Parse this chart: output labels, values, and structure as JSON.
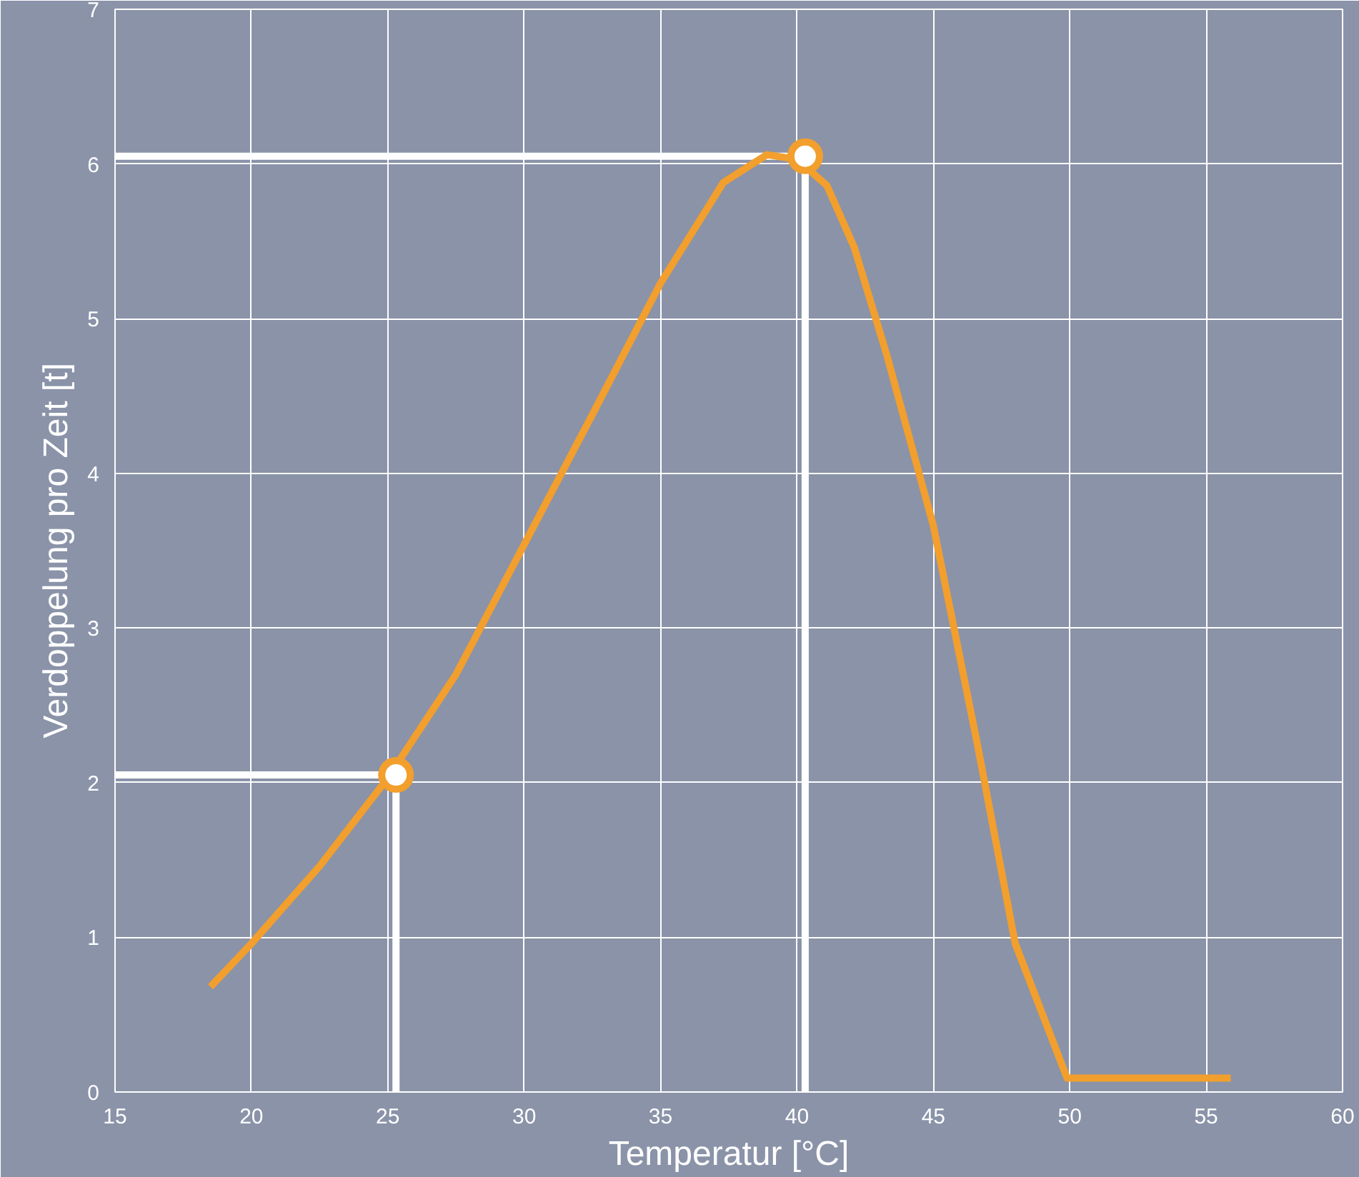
{
  "chart_data": {
    "type": "line",
    "xlabel": "Temperatur [°C]",
    "ylabel": "Verdoppelung pro Zeit [t]",
    "xlim": [
      15,
      60
    ],
    "ylim": [
      0,
      7
    ],
    "xticks": [
      15,
      20,
      25,
      30,
      35,
      40,
      45,
      50,
      55,
      60
    ],
    "yticks": [
      0,
      1,
      2,
      3,
      4,
      5,
      6,
      7
    ],
    "grid": true,
    "series": [
      {
        "color": "#ffffff",
        "x": [
          15,
          25.3,
          25.3
        ],
        "values": [
          2.05,
          2.05,
          0
        ]
      },
      {
        "color": "#ffffff",
        "x": [
          15,
          40.3,
          40.3
        ],
        "values": [
          6.05,
          6.05,
          0
        ]
      },
      {
        "color": "#f29f2e",
        "x": [
          18.5,
          20,
          22.5,
          25,
          27.5,
          30,
          32.5,
          35,
          37.3,
          38.9,
          40,
          41.1,
          42.1,
          43.3,
          45,
          46.6,
          48,
          49.9,
          55.9
        ],
        "values": [
          0.68,
          0.96,
          1.46,
          2.03,
          2.7,
          3.54,
          4.38,
          5.23,
          5.88,
          6.06,
          6.03,
          5.86,
          5.46,
          4.76,
          3.66,
          2.26,
          0.96,
          0.09,
          0.09
        ]
      },
      {
        "type": "scatter",
        "color": "#f29f2e",
        "x": [
          25.3,
          40.3
        ],
        "values": [
          2.05,
          6.05
        ]
      }
    ]
  }
}
